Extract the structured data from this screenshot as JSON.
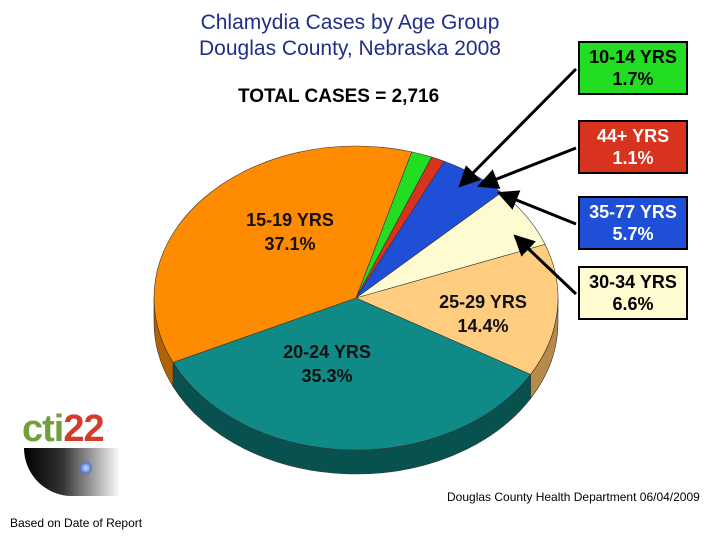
{
  "title_line1": "Chlamydia Cases by Age Group",
  "title_line2": "Douglas County, Nebraska 2008",
  "total_text": "TOTAL CASES = 2,716",
  "footer_left": "Based on Date of Report",
  "footer_right": "Douglas County Health Department 06/04/2009",
  "logo": {
    "part1": "cti",
    "part2": "22"
  },
  "chart_data": {
    "type": "pie",
    "title": "Chlamydia Cases by Age Group Douglas County, Nebraska 2008",
    "total": 2716,
    "slices": [
      {
        "label": "10-14 YRS",
        "value": 1.7,
        "value_text": "1.7%",
        "color": "#22dd22",
        "side": "#129a12",
        "callout": true
      },
      {
        "label": "44+ YRS",
        "value": 1.1,
        "value_text": "1.1%",
        "color": "#d8331e",
        "side": "#8a1f12",
        "callout": true
      },
      {
        "label": "35-77 YRS",
        "value": 5.7,
        "value_text": "5.7%",
        "color": "#1f4fd6",
        "side": "#143796",
        "callout": true
      },
      {
        "label": "30-34 YRS",
        "value": 6.6,
        "value_text": "6.6%",
        "color": "#fffbd0",
        "side": "#b5b091",
        "callout": true
      },
      {
        "label": "25-29 YRS",
        "value": 14.4,
        "value_text": "14.4%",
        "color": "#ffcd80",
        "side": "#b88a4a",
        "callout": false
      },
      {
        "label": "20-24 YRS",
        "value": 35.3,
        "value_text": "35.3%",
        "color": "#0f8a87",
        "side": "#07524f",
        "callout": false
      },
      {
        "label": "15-19 YRS",
        "value": 37.1,
        "value_text": "37.1%",
        "color": "#ff8c00",
        "side": "#b46200",
        "callout": false
      }
    ]
  }
}
